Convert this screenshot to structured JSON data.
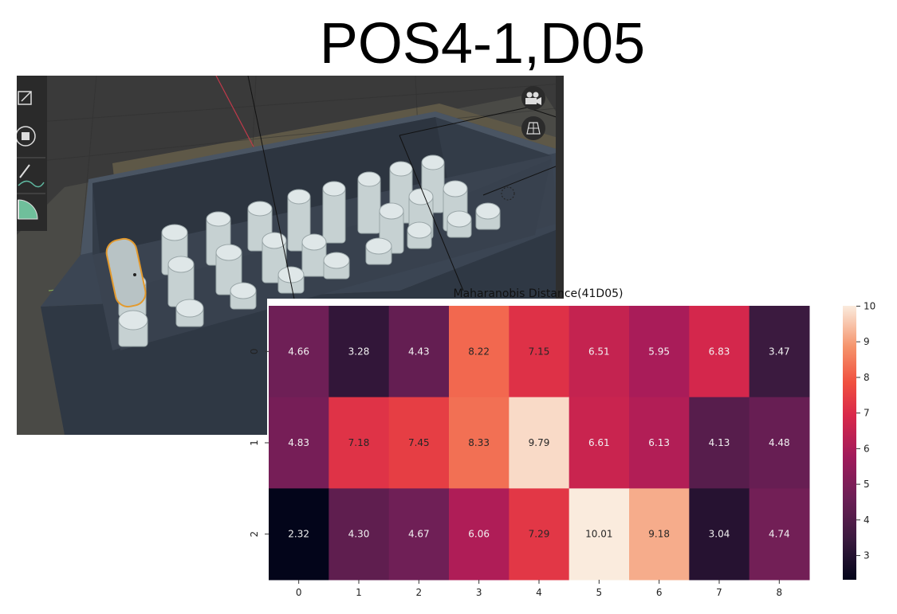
{
  "slide": {
    "title": "POS4-1,D05"
  },
  "viewport": {
    "scene": "3d-box-with-cylinders",
    "icons": [
      "scale-icon",
      "transform-icon",
      "annotate-icon",
      "measure-icon",
      "camera-icon",
      "grid-icon"
    ]
  },
  "chart_data": {
    "type": "heatmap",
    "title": "Maharanobis Distance(41D05)",
    "x": [
      "0",
      "1",
      "2",
      "3",
      "4",
      "5",
      "6",
      "7",
      "8"
    ],
    "y": [
      "0",
      "1",
      "2"
    ],
    "values": [
      [
        4.66,
        3.28,
        4.43,
        8.22,
        7.15,
        6.51,
        5.95,
        6.83,
        3.47
      ],
      [
        4.83,
        7.18,
        7.45,
        8.33,
        9.79,
        6.61,
        6.13,
        4.13,
        4.48
      ],
      [
        2.32,
        4.3,
        4.67,
        6.06,
        7.29,
        10.01,
        9.18,
        3.04,
        4.74
      ]
    ],
    "labels": [
      [
        "4.66",
        "3.28",
        "4.43",
        "8.22",
        "7.15",
        "6.51",
        "5.95",
        "6.83",
        "3.47"
      ],
      [
        "4.83",
        "7.18",
        "7.45",
        "8.33",
        "9.79",
        "6.61",
        "6.13",
        "4.13",
        "4.48"
      ],
      [
        "2.32",
        "4.30",
        "4.67",
        "6.06",
        "7.29",
        "10.01",
        "9.18",
        "3.04",
        "4.74"
      ]
    ],
    "colorbar": {
      "ticks": [
        "10",
        "9",
        "8",
        "7",
        "6",
        "5",
        "4",
        "3"
      ],
      "range": [
        2.32,
        10.01
      ]
    },
    "colormap": "rocket"
  }
}
